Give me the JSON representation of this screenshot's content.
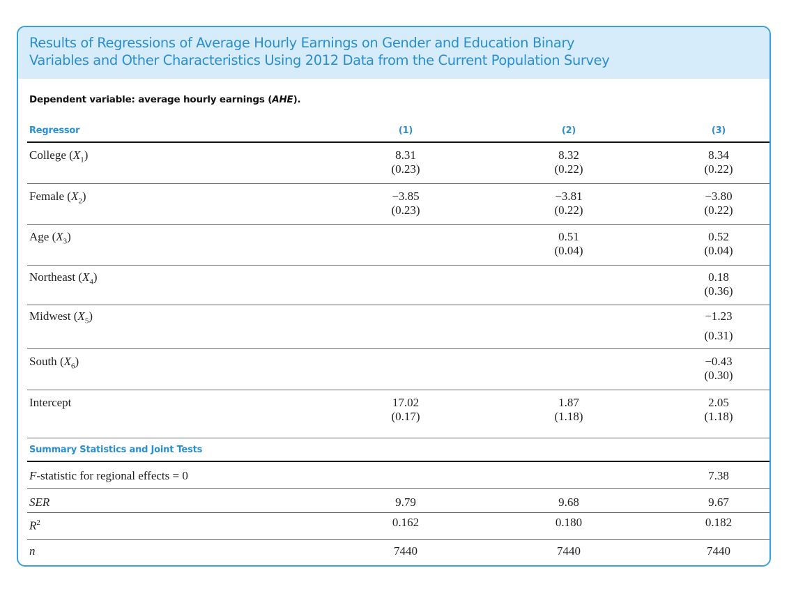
{
  "title": {
    "line1": "Results of Regressions of Average Hourly Earnings on Gender and Education Binary",
    "line2": "Variables and Other Characteristics Using 2012 Data from the Current Population Survey"
  },
  "dependent_variable": {
    "prefix": "Dependent variable: average hourly earnings (",
    "abbr": "AHE",
    "suffix": ")."
  },
  "columns": {
    "regressor": "Regressor",
    "c1": "(1)",
    "c2": "(2)",
    "c3": "(3)"
  },
  "rows": [
    {
      "label": "College",
      "sym": "X",
      "sub": "1",
      "c1": [
        "8.31",
        "(0.23)"
      ],
      "c2": [
        "8.32",
        "(0.22)"
      ],
      "c3": [
        "8.34",
        "(0.22)"
      ]
    },
    {
      "label": "Female",
      "sym": "X",
      "sub": "2",
      "c1": [
        "−3.85",
        "(0.23)"
      ],
      "c2": [
        "−3.81",
        "(0.22)"
      ],
      "c3": [
        "−3.80",
        "(0.22)"
      ]
    },
    {
      "label": "Age",
      "sym": "X",
      "sub": "3",
      "c1": [
        "",
        ""
      ],
      "c2": [
        "0.51",
        "(0.04)"
      ],
      "c3": [
        "0.52",
        "(0.04)"
      ]
    },
    {
      "label": "Northeast",
      "sym": "X",
      "sub": "4",
      "c1": [
        "",
        ""
      ],
      "c2": [
        "",
        ""
      ],
      "c3": [
        "0.18",
        "(0.36)"
      ]
    },
    {
      "label": "Midwest",
      "sym": "X",
      "sub": "5",
      "c1": [
        "",
        ""
      ],
      "c2": [
        "",
        ""
      ],
      "c3": [
        "−1.23",
        "(0.31)"
      ]
    },
    {
      "label": "South",
      "sym": "X",
      "sub": "6",
      "c1": [
        "",
        ""
      ],
      "c2": [
        "",
        ""
      ],
      "c3": [
        "−0.43",
        "(0.30)"
      ]
    },
    {
      "label": "Intercept",
      "sym": "",
      "sub": "",
      "c1": [
        "17.02",
        "(0.17)"
      ],
      "c2": [
        "1.87",
        "(1.18)"
      ],
      "c3": [
        "2.05",
        "(1.18)"
      ]
    }
  ],
  "summary_header": "Summary Statistics and Joint Tests",
  "summary": [
    {
      "label_sym": "F",
      "label": "-statistic for regional effects = 0",
      "c1": "",
      "c2": "",
      "c3": "7.38"
    },
    {
      "label_sym": "SER",
      "label": "",
      "c1": "9.79",
      "c2": "9.68",
      "c3": "9.67"
    },
    {
      "label_sym": "R",
      "label_sup": "2",
      "label": "",
      "c1": "0.162",
      "c2": "0.180",
      "c3": "0.182"
    },
    {
      "label_sym": "n",
      "label": "",
      "c1": "7440",
      "c2": "7440",
      "c3": "7440"
    }
  ]
}
